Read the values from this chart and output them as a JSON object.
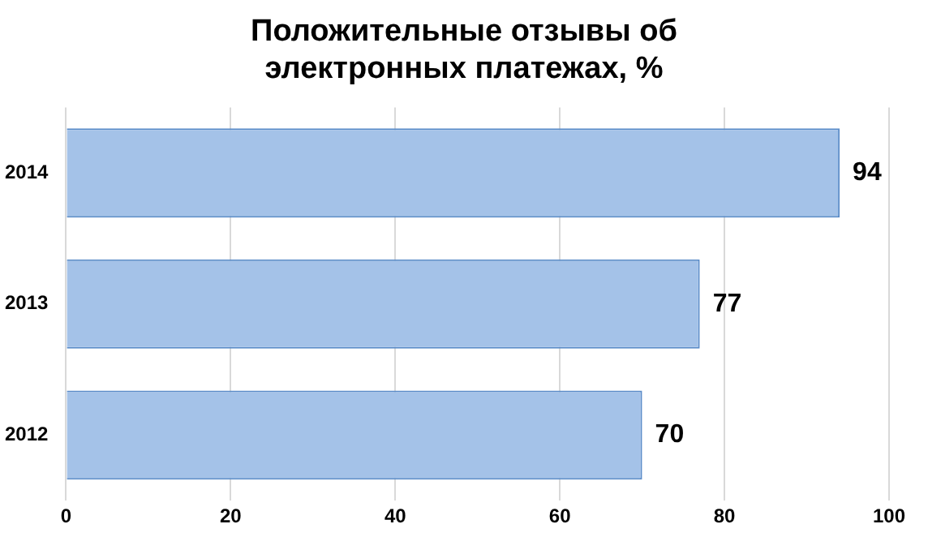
{
  "chart_data": {
    "type": "bar",
    "orientation": "horizontal",
    "title": "Положительные отзывы об электронных платежах, %",
    "categories": [
      "2014",
      "2013",
      "2012"
    ],
    "values": [
      94,
      77,
      70
    ],
    "color": "#a4c2e8",
    "xlim": [
      0,
      100
    ],
    "xticks": [
      0,
      20,
      40,
      60,
      80,
      100
    ],
    "grid": "x",
    "data_labels": true,
    "legend": false
  }
}
